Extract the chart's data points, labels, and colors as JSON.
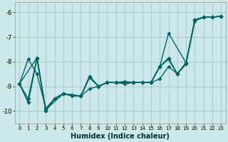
{
  "xlabel": "Humidex (Indice chaleur)",
  "background_color": "#cce8e8",
  "grid_color": "#aacccc",
  "line_color": "#006666",
  "marker": "D",
  "markersize": 2.5,
  "linewidth": 1.0,
  "xlim": [
    -0.5,
    23.5
  ],
  "ylim": [
    -10.5,
    -5.6
  ],
  "yticks": [
    -10,
    -9,
    -8,
    -7,
    -6
  ],
  "xticks": [
    0,
    1,
    2,
    3,
    4,
    5,
    6,
    7,
    8,
    9,
    10,
    11,
    12,
    13,
    14,
    15,
    16,
    17,
    18,
    19,
    20,
    21,
    22,
    23
  ],
  "series": [
    {
      "x": [
        0,
        1,
        2,
        3,
        4,
        5,
        6,
        7,
        8,
        9,
        10,
        11,
        12,
        13,
        14,
        15,
        16,
        17,
        18,
        19,
        20,
        21,
        22,
        23
      ],
      "y": [
        -8.9,
        -7.9,
        -8.5,
        -9.9,
        -9.5,
        -9.3,
        -9.4,
        -9.4,
        -9.1,
        -9.0,
        -8.85,
        -8.85,
        -8.8,
        -8.85,
        -8.85,
        -8.85,
        -8.7,
        -8.2,
        -8.5,
        -8.1,
        -6.3,
        -6.2,
        -6.2,
        -6.15
      ]
    },
    {
      "x": [
        0,
        1,
        2,
        3,
        4,
        5,
        6,
        7,
        8,
        9,
        10,
        11,
        12,
        13,
        14,
        15,
        16,
        17,
        18,
        19,
        20,
        21,
        22,
        23
      ],
      "y": [
        -8.9,
        -9.5,
        -7.85,
        -10.0,
        -9.5,
        -9.3,
        -9.35,
        -9.4,
        -8.6,
        -9.0,
        -8.85,
        -8.85,
        -8.9,
        -8.85,
        -8.85,
        -8.85,
        -8.2,
        -7.85,
        -8.5,
        -8.05,
        -6.3,
        -6.2,
        -6.2,
        -6.15
      ]
    },
    {
      "x": [
        0,
        1,
        2,
        3,
        4,
        5,
        6,
        7,
        8,
        9,
        10,
        11,
        12,
        13,
        14,
        15,
        16,
        17,
        18,
        19,
        20,
        21,
        22,
        23
      ],
      "y": [
        -8.9,
        -9.65,
        -7.85,
        -10.0,
        -9.5,
        -9.3,
        -9.35,
        -9.4,
        -8.65,
        -9.0,
        -8.85,
        -8.85,
        -8.85,
        -8.85,
        -8.85,
        -8.85,
        -8.2,
        -7.9,
        -8.5,
        -8.05,
        -6.35,
        -6.2,
        -6.2,
        -6.15
      ]
    },
    {
      "x": [
        0,
        1,
        2,
        3,
        5,
        6,
        7,
        8,
        9,
        10,
        11,
        12,
        13,
        14,
        15,
        16,
        17,
        19,
        20,
        21,
        22,
        23
      ],
      "y": [
        -8.9,
        -9.65,
        -7.85,
        -9.95,
        -9.3,
        -9.35,
        -9.4,
        -8.6,
        -9.0,
        -8.85,
        -8.85,
        -8.85,
        -8.85,
        -8.85,
        -8.85,
        -8.2,
        -6.85,
        -8.05,
        -6.3,
        -6.2,
        -6.2,
        -6.15
      ]
    },
    {
      "x": [
        0,
        2,
        3,
        4,
        5,
        6,
        7,
        8,
        9,
        10,
        11,
        12,
        13,
        14,
        15,
        16,
        17,
        18,
        19,
        20,
        21,
        22,
        23
      ],
      "y": [
        -8.9,
        -7.85,
        -10.0,
        -9.5,
        -9.3,
        -9.35,
        -9.4,
        -8.6,
        -9.0,
        -8.85,
        -8.85,
        -8.85,
        -8.85,
        -8.85,
        -8.85,
        -8.2,
        -7.9,
        -8.5,
        -8.05,
        -6.3,
        -6.2,
        -6.2,
        -6.15
      ]
    }
  ]
}
